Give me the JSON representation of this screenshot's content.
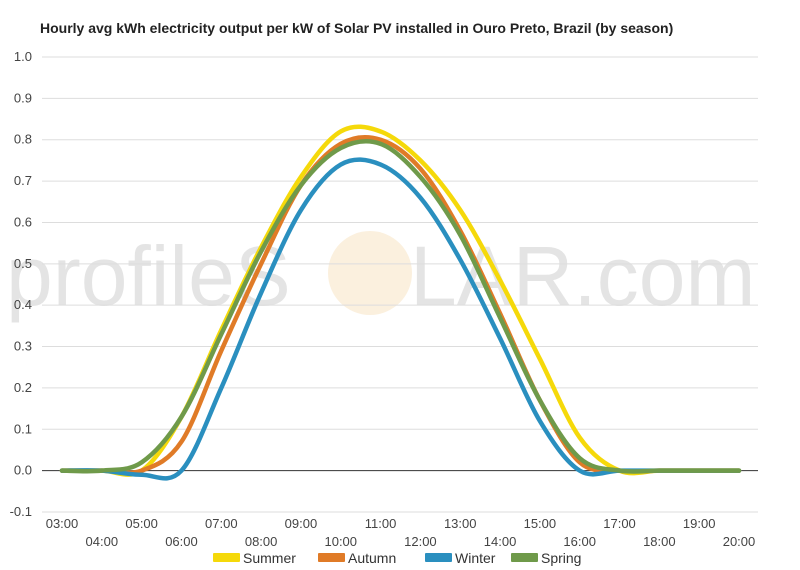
{
  "chart_data": {
    "type": "line",
    "title": "Hourly avg kWh electricity output per kW of Solar PV installed in Ouro Preto, Brazil (by season)",
    "x": [
      "03:00",
      "04:00",
      "05:00",
      "06:00",
      "07:00",
      "08:00",
      "09:00",
      "10:00",
      "11:00",
      "12:00",
      "13:00",
      "14:00",
      "15:00",
      "16:00",
      "17:00",
      "18:00",
      "19:00",
      "20:00"
    ],
    "series": [
      {
        "name": "Summer",
        "color": "#f5d90a",
        "values": [
          0.0,
          0.0,
          0.0,
          0.13,
          0.34,
          0.54,
          0.71,
          0.82,
          0.82,
          0.75,
          0.63,
          0.46,
          0.27,
          0.08,
          0.0,
          0.0,
          0.0,
          0.0
        ]
      },
      {
        "name": "Autumn",
        "color": "#e07b27",
        "values": [
          0.0,
          0.0,
          0.0,
          0.07,
          0.29,
          0.5,
          0.69,
          0.79,
          0.8,
          0.73,
          0.58,
          0.38,
          0.17,
          0.02,
          0.0,
          0.0,
          0.0,
          0.0
        ]
      },
      {
        "name": "Winter",
        "color": "#2a8fbf",
        "values": [
          0.0,
          0.0,
          -0.01,
          0.0,
          0.2,
          0.43,
          0.63,
          0.74,
          0.74,
          0.66,
          0.51,
          0.32,
          0.12,
          0.0,
          0.0,
          0.0,
          0.0,
          0.0
        ]
      },
      {
        "name": "Spring",
        "color": "#6f9a4a",
        "values": [
          0.0,
          0.0,
          0.02,
          0.13,
          0.33,
          0.53,
          0.69,
          0.78,
          0.79,
          0.71,
          0.57,
          0.37,
          0.17,
          0.03,
          0.0,
          0.0,
          0.0,
          0.0
        ]
      }
    ],
    "ylim": [
      -0.1,
      1.0
    ],
    "yticks": [
      "-0.1",
      "0.0",
      "0.1",
      "0.2",
      "0.3",
      "0.4",
      "0.5",
      "0.6",
      "0.7",
      "0.8",
      "0.9",
      "1.0"
    ],
    "grid": true,
    "legend_position": "bottom"
  },
  "watermark": {
    "left": "profileS",
    "right": "LAR.com"
  }
}
